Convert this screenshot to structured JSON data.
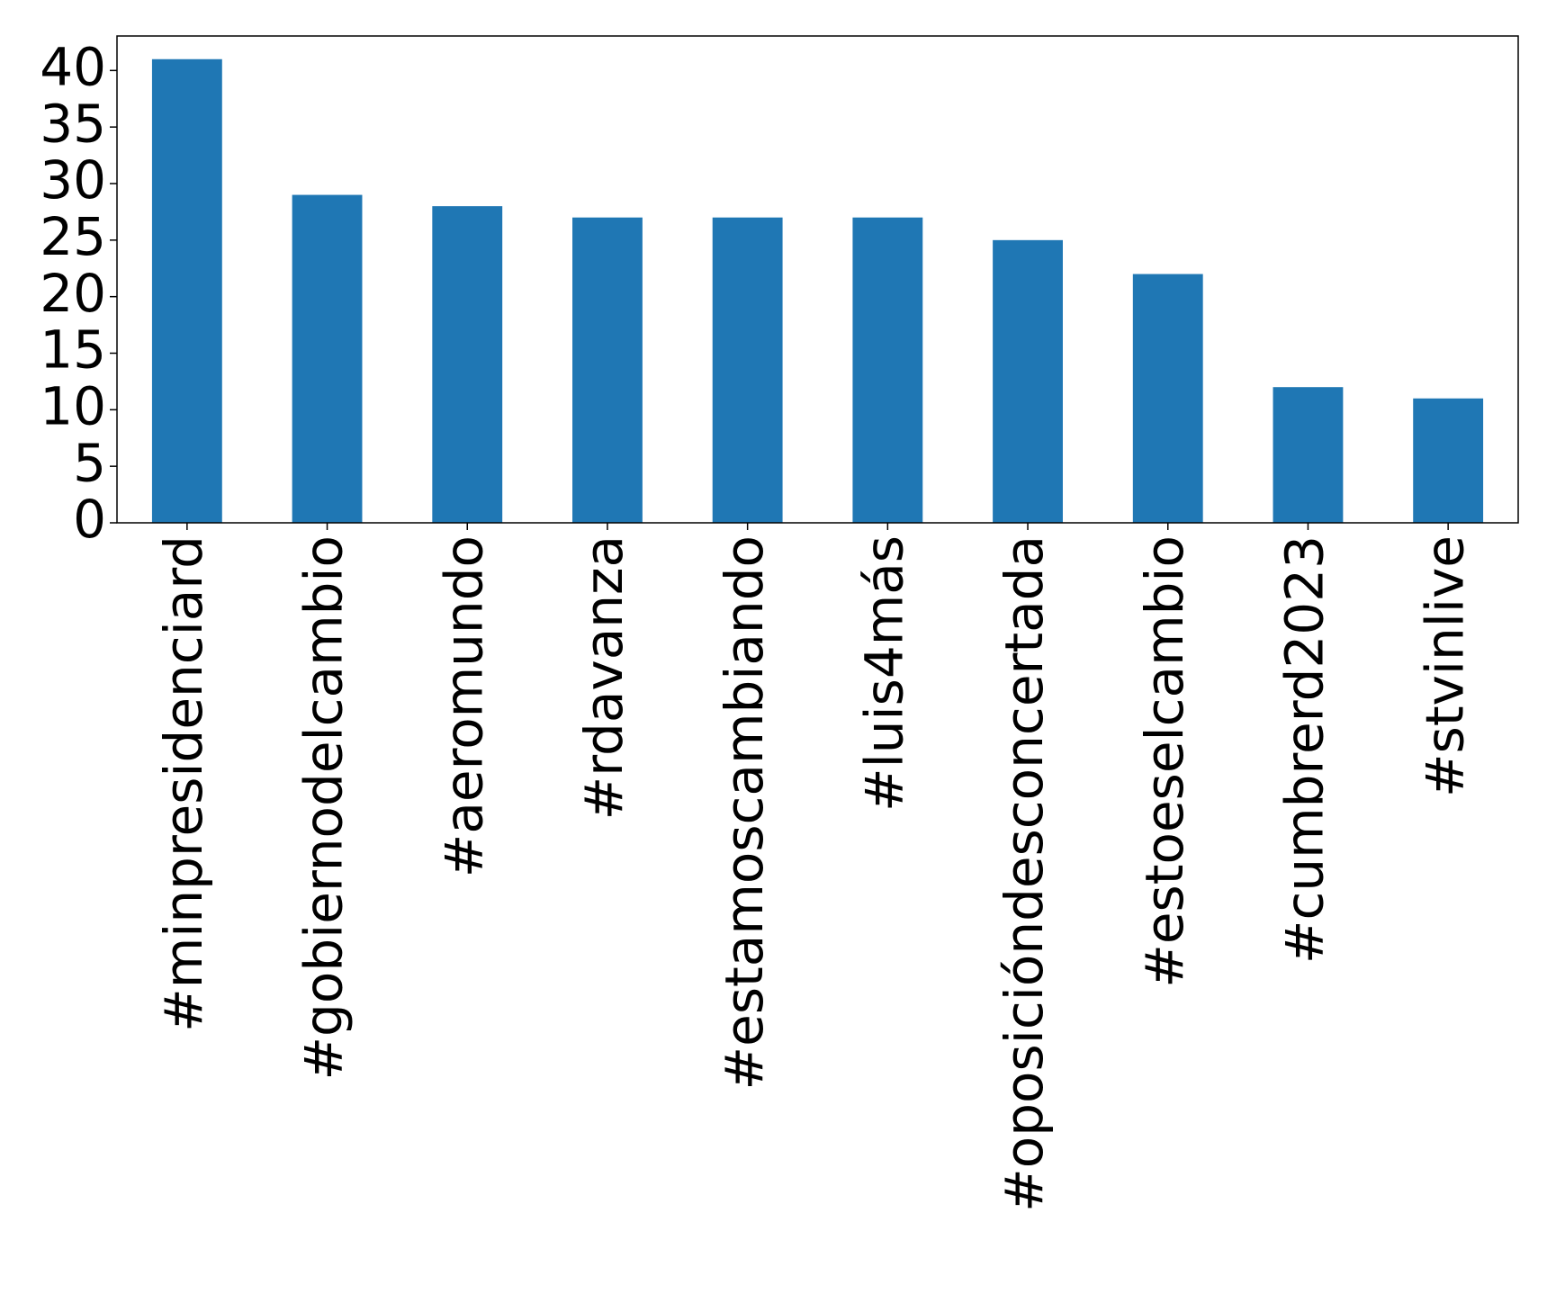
{
  "chart_data": {
    "type": "bar",
    "categories": [
      "#minpresidenciard",
      "#gobiernodelcambio",
      "#aeromundo",
      "#rdavanza",
      "#estamoscambiando",
      "#luis4más",
      "#oposicióndesconcertada",
      "#estoeselcambio",
      "#cumbrerd2023",
      "#stvinlive"
    ],
    "values": [
      41,
      29,
      28,
      27,
      27,
      27,
      25,
      22,
      12,
      11
    ],
    "color": "#1f77b4",
    "ylim": [
      0,
      43.05
    ],
    "yticks": [
      0,
      5,
      10,
      15,
      20,
      25,
      30,
      35,
      40
    ],
    "grid": false
  }
}
